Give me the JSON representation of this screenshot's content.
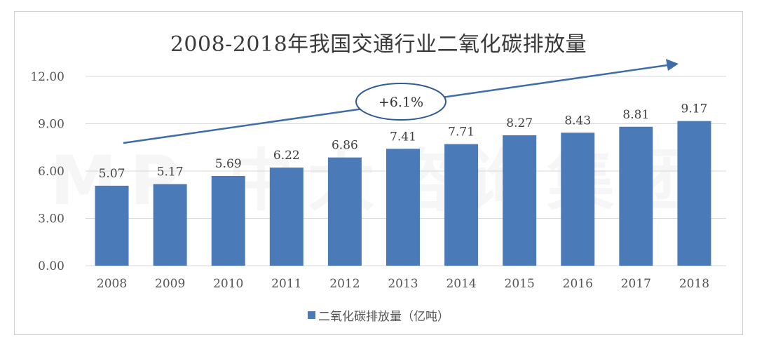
{
  "title": "2008-2018年我国交通行业二氧化碳排放量",
  "growth_annotation": "+6.1%",
  "watermark": "MP 中大咨询集团",
  "colors": {
    "bar": "#4a7ab8",
    "arrow": "#3e6da8",
    "grid": "#d9d9d9",
    "text": "#555555"
  },
  "chart_data": {
    "type": "bar",
    "title": "2008-2018年我国交通行业二氧化碳排放量",
    "categories": [
      "2008",
      "2009",
      "2010",
      "2011",
      "2012",
      "2013",
      "2014",
      "2015",
      "2016",
      "2017",
      "2018"
    ],
    "series": [
      {
        "name": "二氧化碳排放量（亿吨）",
        "values": [
          5.07,
          5.17,
          5.69,
          6.22,
          6.86,
          7.41,
          7.71,
          8.27,
          8.43,
          8.81,
          9.17
        ]
      }
    ],
    "value_labels": [
      "5.07",
      "5.17",
      "5.69",
      "6.22",
      "6.86",
      "7.41",
      "7.71",
      "8.27",
      "8.43",
      "8.81",
      "9.17"
    ],
    "y_ticks": [
      0,
      3,
      6,
      9,
      12
    ],
    "y_tick_labels": [
      "0.00",
      "3.00",
      "6.00",
      "9.00",
      "12.00"
    ],
    "ylim": [
      0,
      12
    ],
    "grid": true,
    "legend_position": "bottom",
    "xlabel": "",
    "ylabel": ""
  }
}
